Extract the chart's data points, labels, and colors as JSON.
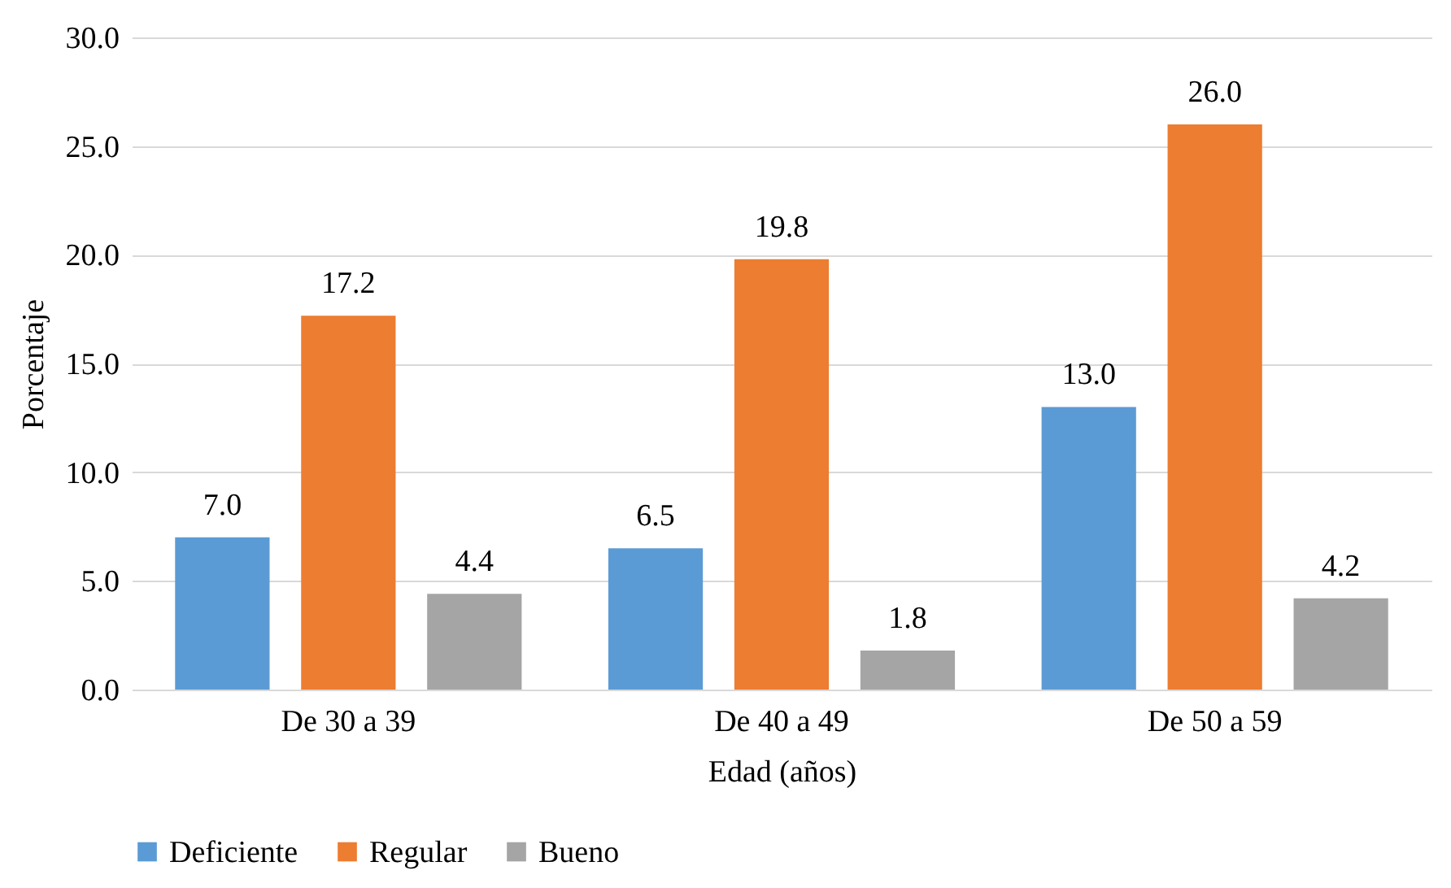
{
  "chart_data": {
    "type": "bar",
    "xlabel": "Edad (años)",
    "ylabel": "Porcentaje",
    "categories": [
      "De 30 a 39",
      "De 40 a 49",
      "De 50 a 59"
    ],
    "series": [
      {
        "name": "Deficiente",
        "color": "#5b9bd5",
        "values": [
          7.0,
          6.5,
          13.0
        ],
        "value_labels": [
          "7.0",
          "6.5",
          "13.0"
        ]
      },
      {
        "name": "Regular",
        "color": "#ed7d31",
        "values": [
          17.2,
          19.8,
          26.0
        ],
        "value_labels": [
          "17.2",
          "19.8",
          "26.0"
        ]
      },
      {
        "name": "Bueno",
        "color": "#a5a5a5",
        "values": [
          4.4,
          1.8,
          4.2
        ],
        "value_labels": [
          "4.4",
          "1.8",
          "4.2"
        ]
      }
    ],
    "ylim": [
      0,
      30
    ],
    "yticks": [
      {
        "value": 0,
        "label": "0.0"
      },
      {
        "value": 5,
        "label": "5.0"
      },
      {
        "value": 10,
        "label": "10.0"
      },
      {
        "value": 15,
        "label": "15.0"
      },
      {
        "value": 20,
        "label": "20.0"
      },
      {
        "value": 25,
        "label": "25.0"
      },
      {
        "value": 30,
        "label": "30.0"
      }
    ],
    "grid": "y",
    "legend": "bottom"
  }
}
